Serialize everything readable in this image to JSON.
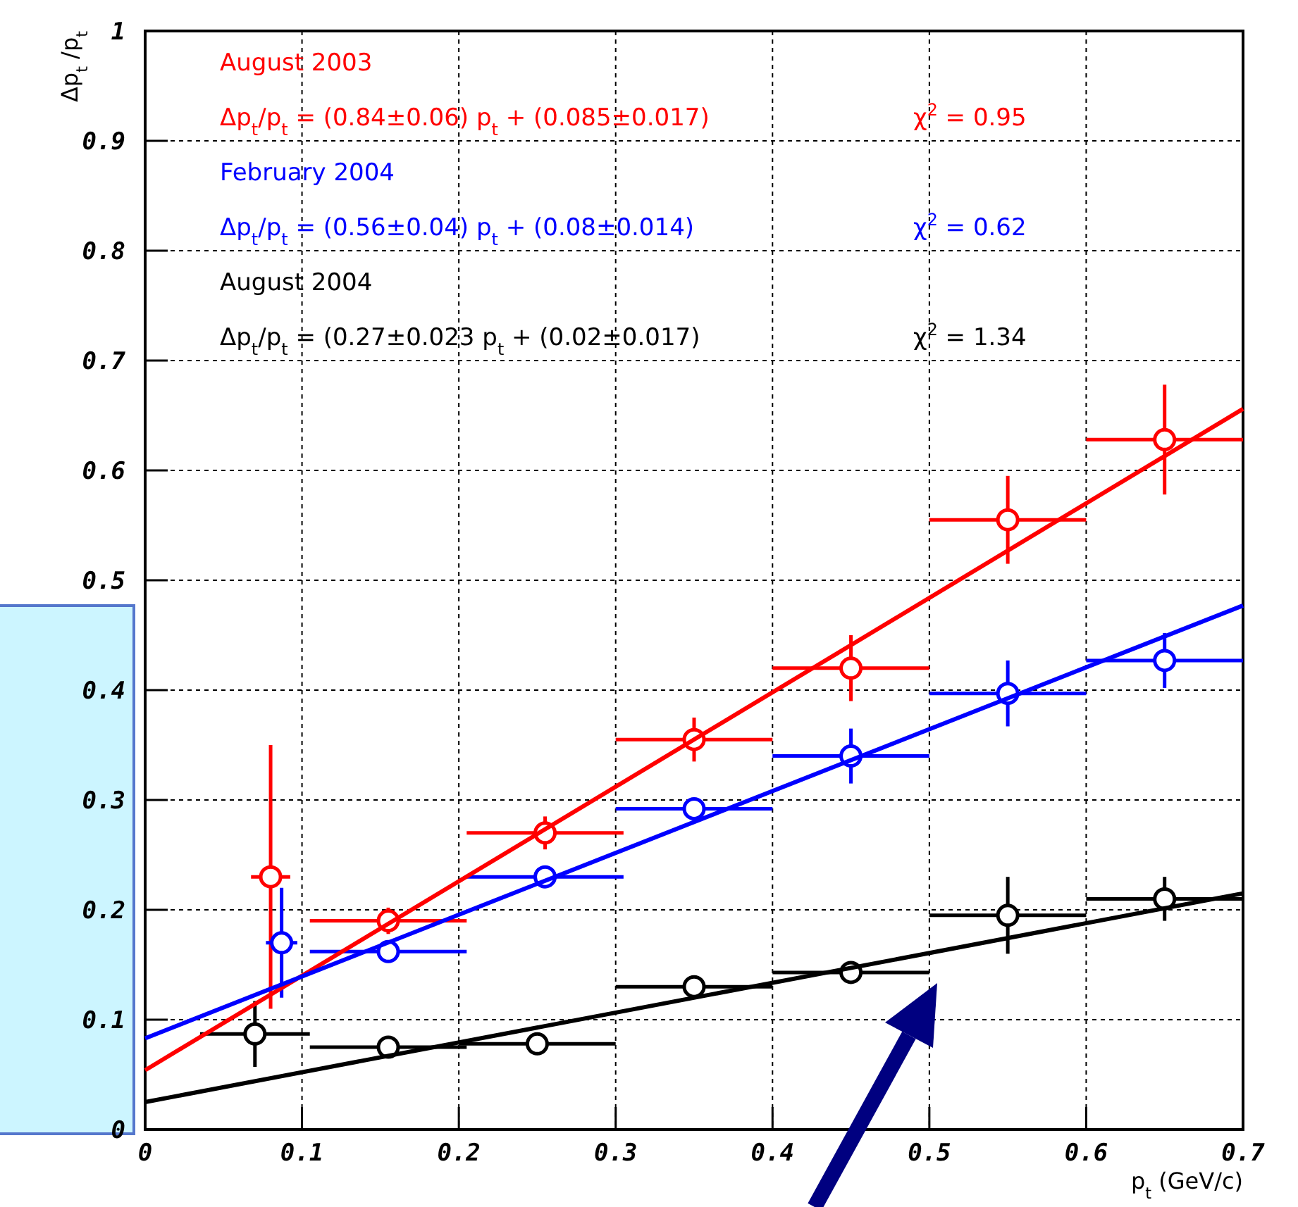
{
  "chart_data": {
    "type": "scatter",
    "xlabel": "p$_{t}$ (GeV/c)",
    "ylabel": "Δp$_{t}$ /p$_{t}$",
    "xlim": [
      0,
      0.7
    ],
    "ylim": [
      0,
      1
    ],
    "xticks": [
      0,
      0.1,
      0.2,
      0.3,
      0.4,
      0.5,
      0.6,
      0.7
    ],
    "yticks": [
      0,
      0.1,
      0.2,
      0.3,
      0.4,
      0.5,
      0.6,
      0.7,
      0.8,
      0.9,
      1
    ],
    "grid": true,
    "marker": "circle",
    "series": [
      {
        "color": "#ff0000",
        "x": [
          0.08,
          0.155,
          0.255,
          0.35,
          0.45,
          0.55,
          0.65
        ],
        "values": [
          0.23,
          0.19,
          0.27,
          0.355,
          0.42,
          0.555,
          0.628
        ],
        "errors": [
          0.12,
          0.012,
          0.015,
          0.02,
          0.03,
          0.04,
          0.05
        ],
        "xerrors": [
          0.0125,
          0.05,
          0.05,
          0.05,
          0.05,
          0.05,
          0.05
        ]
      },
      {
        "color": "#0000ff",
        "x": [
          0.087,
          0.155,
          0.255,
          0.35,
          0.45,
          0.55,
          0.65
        ],
        "values": [
          0.17,
          0.162,
          0.23,
          0.292,
          0.34,
          0.397,
          0.427
        ],
        "errors": [
          0.05,
          0.01,
          0.01,
          0.01,
          0.025,
          0.03,
          0.025
        ],
        "xerrors": [
          0.01,
          0.05,
          0.05,
          0.05,
          0.05,
          0.05,
          0.05
        ]
      },
      {
        "color": "#000000",
        "x": [
          0.07,
          0.155,
          0.25,
          0.35,
          0.45,
          0.55,
          0.65
        ],
        "values": [
          0.087,
          0.075,
          0.078,
          0.13,
          0.143,
          0.195,
          0.21
        ],
        "errors": [
          0.03,
          0.007,
          0.005,
          0.01,
          0.01,
          0.035,
          0.02
        ],
        "xerrors": [
          0.035,
          0.05,
          0.05,
          0.05,
          0.05,
          0.05,
          0.05
        ]
      },
      {
        "type": "line",
        "marker": "none",
        "color": "#ff0000",
        "x": [
          0,
          0.7
        ],
        "values": [
          0.054,
          0.656
        ]
      },
      {
        "type": "line",
        "marker": "none",
        "color": "#0000ff",
        "x": [
          0,
          0.7
        ],
        "values": [
          0.083,
          0.477
        ]
      },
      {
        "type": "line",
        "marker": "none",
        "color": "#000000",
        "x": [
          0,
          0.7
        ],
        "values": [
          0.025,
          0.215
        ]
      }
    ],
    "annotations": [
      "August 2003",
      "Δp$_{t}$/p$_{t}$ = (0.84±0.06) p$_{t}$ + (0.085±0.017)",
      "χ$^{2}$ = 0.95",
      "February 2004",
      "Δp$_{t}$/p$_{t}$ = (0.56±0.04) p$_{t}$ + (0.08±0.014)",
      "χ$^{2}$ = 0.62",
      "August 2004",
      "Δp$_{t}$/p$_{t}$ = (0.27±0.023 p$_{t}$ + (0.02±0.017)",
      "χ$^{2}$ = 1.34"
    ]
  }
}
